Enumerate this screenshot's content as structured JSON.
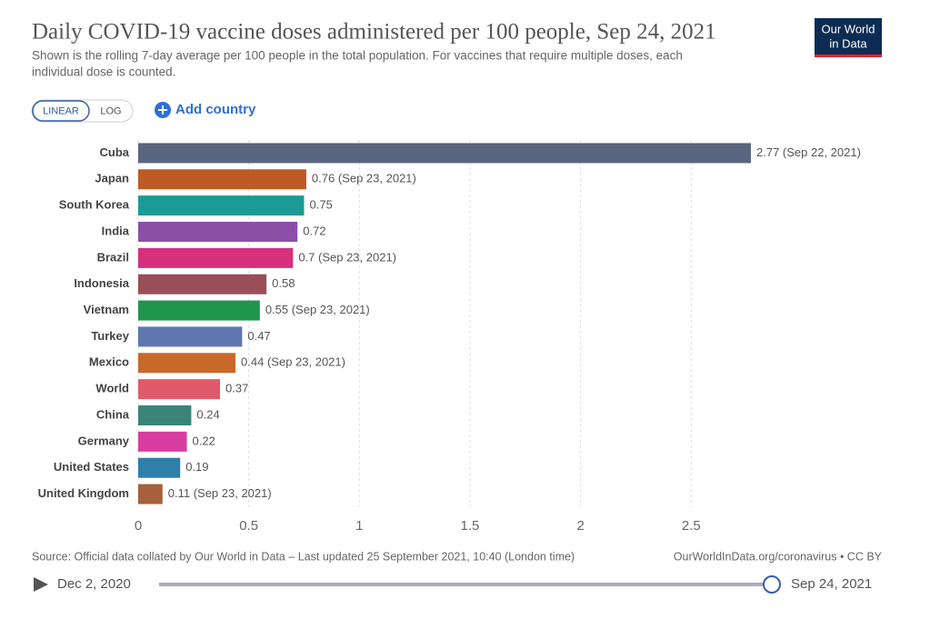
{
  "header": {
    "title": "Daily COVID-19 vaccine doses administered per 100 people, Sep 24, 2021",
    "subtitle": [
      "Shown is the rolling 7-day average per 100 people in the total population. For vaccines that require multiple doses, each",
      "individual dose is counted."
    ],
    "logo": [
      "Our World",
      "in Data"
    ]
  },
  "controls": {
    "scale_buttons": [
      "LINEAR",
      "LOG"
    ],
    "add_country": "Add country"
  },
  "chart_data": {
    "type": "bar",
    "orientation": "horizontal",
    "categories": [
      "Cuba",
      "Japan",
      "South Korea",
      "India",
      "Brazil",
      "Indonesia",
      "Vietnam",
      "Turkey",
      "Mexico",
      "World",
      "China",
      "Germany",
      "United States",
      "United Kingdom"
    ],
    "values": [
      2.77,
      0.76,
      0.75,
      0.72,
      0.7,
      0.58,
      0.55,
      0.47,
      0.44,
      0.37,
      0.24,
      0.22,
      0.19,
      0.11
    ],
    "value_labels": [
      "2.77 (Sep 22, 2021)",
      "0.76 (Sep 23, 2021)",
      "0.75",
      "0.72",
      "0.7 (Sep 23, 2021)",
      "0.58",
      "0.55 (Sep 23, 2021)",
      "0.47",
      "0.44 (Sep 23, 2021)",
      "0.37",
      "0.24",
      "0.22",
      "0.19",
      "0.11 (Sep 23, 2021)"
    ],
    "colors": [
      "#5a6680",
      "#be5a25",
      "#1d9a95",
      "#8b4fa8",
      "#d6307c",
      "#994e58",
      "#20954c",
      "#6076b0",
      "#c8692a",
      "#e05a6b",
      "#3b8479",
      "#d83da0",
      "#2f7fab",
      "#a5603c"
    ],
    "xlim": [
      0,
      2.77
    ],
    "xticks": [
      0,
      0.5,
      1,
      1.5,
      2,
      2.5
    ],
    "grid": true
  },
  "footer": {
    "source": "Source: Official data collated by Our World in Data – Last updated 25 September 2021, 10:40 (London time)",
    "link": "OurWorldInData.org/coronavirus • CC BY"
  },
  "timeline": {
    "start": "Dec 2, 2020",
    "end": "Sep 24, 2021"
  }
}
